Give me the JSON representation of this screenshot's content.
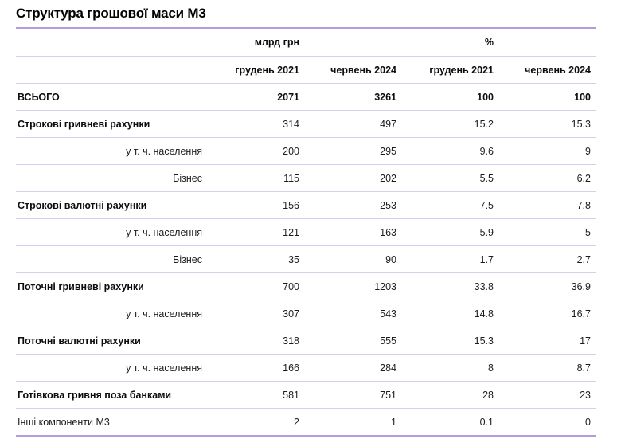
{
  "title": "Структура грошової маси М3",
  "colors": {
    "outer_border": "#b49ade",
    "inner_border": "#d8cdee",
    "text": "#1c1c1c"
  },
  "chart_data": {
    "type": "table",
    "title": "Структура грошової маси М3",
    "column_groups": [
      "млрд грн",
      "%"
    ],
    "columns": [
      "грудень 2021",
      "червень 2024",
      "грудень 2021",
      "червень 2024"
    ],
    "rows": [
      {
        "label": "ВСЬОГО",
        "emphasis": "total",
        "values": [
          "2071",
          "3261",
          "100",
          "100"
        ]
      },
      {
        "label": "Строкові гривневі рахунки",
        "emphasis": "bold",
        "values": [
          "314",
          "497",
          "15.2",
          "15.3"
        ]
      },
      {
        "label": "у т. ч. населення",
        "emphasis": "sub",
        "values": [
          "200",
          "295",
          "9.6",
          "9"
        ]
      },
      {
        "label": "Бізнес",
        "emphasis": "sub",
        "values": [
          "115",
          "202",
          "5.5",
          "6.2"
        ]
      },
      {
        "label": "Строкові валютні рахунки",
        "emphasis": "bold",
        "values": [
          "156",
          "253",
          "7.5",
          "7.8"
        ]
      },
      {
        "label": "у т. ч. населення",
        "emphasis": "sub",
        "values": [
          "121",
          "163",
          "5.9",
          "5"
        ]
      },
      {
        "label": "Бізнес",
        "emphasis": "sub",
        "values": [
          "35",
          "90",
          "1.7",
          "2.7"
        ]
      },
      {
        "label": "Поточні гривневі рахунки",
        "emphasis": "bold",
        "values": [
          "700",
          "1203",
          "33.8",
          "36.9"
        ]
      },
      {
        "label": "у т. ч. населення",
        "emphasis": "sub",
        "values": [
          "307",
          "543",
          "14.8",
          "16.7"
        ]
      },
      {
        "label": "Поточні валютні рахунки",
        "emphasis": "bold",
        "values": [
          "318",
          "555",
          "15.3",
          "17"
        ]
      },
      {
        "label": "у т. ч. населення",
        "emphasis": "sub",
        "values": [
          "166",
          "284",
          "8",
          "8.7"
        ]
      },
      {
        "label": "Готівкова гривня поза банками",
        "emphasis": "bold",
        "values": [
          "581",
          "751",
          "28",
          "23"
        ]
      },
      {
        "label": "Інші компоненти М3",
        "emphasis": "plain",
        "values": [
          "2",
          "1",
          "0.1",
          "0"
        ]
      }
    ]
  }
}
